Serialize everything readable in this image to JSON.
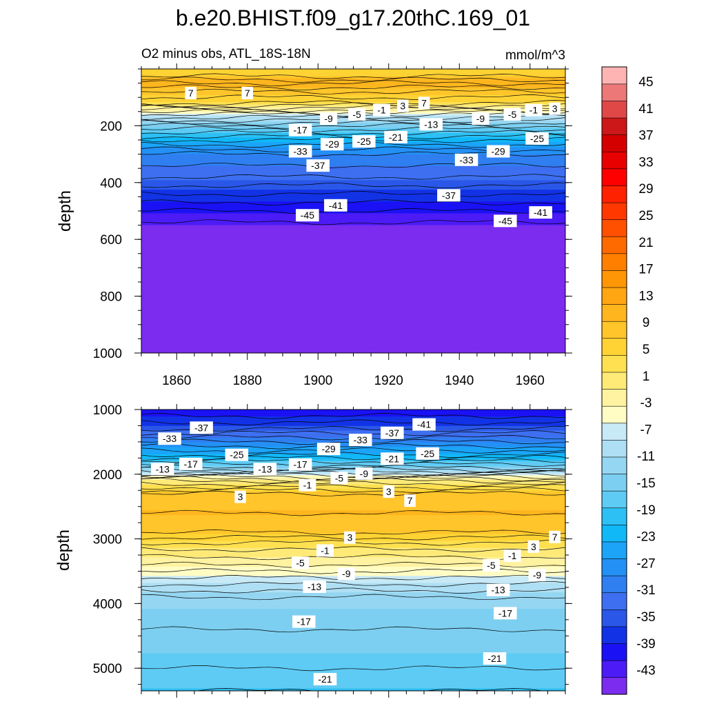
{
  "figure": {
    "title": "b.e20.BHIST.f09_g17.20thC.169_01",
    "subtitle_left": "O2 minus obs, ATL_18S-18N",
    "subtitle_right": "mmol/m^3"
  },
  "colors": {
    "level_colors": [
      "#7b2cee",
      "#4c1bf6",
      "#1a12f4",
      "#1232e6",
      "#2a57e8",
      "#3d6ff0",
      "#2f7ff0",
      "#2390f5",
      "#1ba4f8",
      "#10b8f8",
      "#2cc0f4",
      "#5ecbf4",
      "#7ccff0",
      "#95d6f2",
      "#aedff4",
      "#c8e9f6",
      "#fffcc4",
      "#fff2a0",
      "#ffea78",
      "#ffe050",
      "#ffd334",
      "#ffc52a",
      "#ffb61e",
      "#ffa612",
      "#ff9606",
      "#ff7f00",
      "#ff6a00",
      "#ff5000",
      "#ff3800",
      "#ff2200",
      "#ff0000",
      "#e80000",
      "#d40000",
      "#cc1818",
      "#e04848",
      "#ec7878",
      "#ffb4b4"
    ]
  },
  "chart_data": [
    {
      "type": "heatmap",
      "panel": "upper",
      "xlabel": "",
      "ylabel": "depth",
      "xlim": [
        1850,
        1970
      ],
      "ylim": [
        1000,
        0
      ],
      "x_ticks": [
        1860,
        1880,
        1900,
        1920,
        1940,
        1960
      ],
      "x_tick_labels": [
        "1860",
        "1880",
        "1900",
        "1920",
        "1940",
        "1960"
      ],
      "y_ticks": [
        200,
        400,
        600,
        800,
        1000
      ],
      "y_tick_labels": [
        "200",
        "400",
        "600",
        "800",
        "1000"
      ],
      "contour_levels": [
        -45,
        -43,
        -41,
        -39,
        -37,
        -35,
        -33,
        -31,
        -29,
        -27,
        -25,
        -23,
        -21,
        -19,
        -17,
        -15,
        -13,
        -11,
        -9,
        -7,
        -5,
        -3,
        -1,
        1,
        3,
        5,
        7,
        9
      ],
      "depth_profile": {
        "depth": [
          20,
          50,
          80,
          120,
          160,
          200,
          250,
          300,
          380,
          440,
          500,
          540,
          560,
          1000
        ],
        "value": [
          4,
          9,
          5,
          1,
          -9,
          -17,
          -25,
          -31,
          -35,
          -39,
          -43,
          -45,
          -47,
          -47
        ]
      },
      "contour_labels": [
        {
          "text": "7",
          "x": 1864,
          "y": 85
        },
        {
          "text": "7",
          "x": 1880,
          "y": 85
        },
        {
          "text": "-9",
          "x": 1903,
          "y": 175
        },
        {
          "text": "-5",
          "x": 1911,
          "y": 160
        },
        {
          "text": "-1",
          "x": 1918,
          "y": 145
        },
        {
          "text": "3",
          "x": 1924,
          "y": 130
        },
        {
          "text": "7",
          "x": 1930,
          "y": 120
        },
        {
          "text": "-17",
          "x": 1895,
          "y": 215
        },
        {
          "text": "-13",
          "x": 1932,
          "y": 195
        },
        {
          "text": "-21",
          "x": 1922,
          "y": 240
        },
        {
          "text": "-25",
          "x": 1913,
          "y": 255
        },
        {
          "text": "-29",
          "x": 1904,
          "y": 265
        },
        {
          "text": "-33",
          "x": 1895,
          "y": 290
        },
        {
          "text": "-9",
          "x": 1946,
          "y": 175
        },
        {
          "text": "-5",
          "x": 1955,
          "y": 160
        },
        {
          "text": "-1",
          "x": 1961,
          "y": 145
        },
        {
          "text": "3",
          "x": 1967,
          "y": 140
        },
        {
          "text": "-25",
          "x": 1962,
          "y": 245
        },
        {
          "text": "-29",
          "x": 1951,
          "y": 290
        },
        {
          "text": "-33",
          "x": 1942,
          "y": 320
        },
        {
          "text": "-37",
          "x": 1900,
          "y": 340
        },
        {
          "text": "-37",
          "x": 1937,
          "y": 445
        },
        {
          "text": "-41",
          "x": 1905,
          "y": 480
        },
        {
          "text": "-45",
          "x": 1897,
          "y": 515
        },
        {
          "text": "-41",
          "x": 1963,
          "y": 505
        },
        {
          "text": "-45",
          "x": 1953,
          "y": 535
        }
      ]
    },
    {
      "type": "heatmap",
      "panel": "lower",
      "xlabel": "",
      "ylabel": "depth",
      "xlim": [
        1850,
        1970
      ],
      "ylim": [
        5350,
        1000
      ],
      "x_ticks": [
        1860,
        1880,
        1900,
        1920,
        1940,
        1960
      ],
      "x_tick_labels": [],
      "y_ticks": [
        1000,
        2000,
        3000,
        4000,
        5000
      ],
      "y_tick_labels": [
        "1000",
        "2000",
        "3000",
        "4000",
        "5000"
      ],
      "contour_levels": [
        -45,
        -43,
        -41,
        -39,
        -37,
        -35,
        -33,
        -31,
        -29,
        -27,
        -25,
        -23,
        -21,
        -19,
        -17,
        -15,
        -13,
        -11,
        -9,
        -7,
        -5,
        -3,
        -1,
        1,
        3,
        5,
        7,
        9
      ],
      "depth_profile": {
        "depth": [
          1000,
          1300,
          1500,
          1700,
          1900,
          2100,
          2300,
          2600,
          2900,
          3100,
          3400,
          3700,
          3900,
          4400,
          5000,
          5350
        ],
        "value": [
          -43,
          -37,
          -31,
          -25,
          -17,
          -3,
          5,
          7,
          5,
          0,
          -5,
          -11,
          -15,
          -17,
          -19,
          -21
        ]
      },
      "contour_labels": [
        {
          "text": "-37",
          "x": 1867,
          "y": 1280
        },
        {
          "text": "-33",
          "x": 1858,
          "y": 1450
        },
        {
          "text": "-41",
          "x": 1930,
          "y": 1230
        },
        {
          "text": "-37",
          "x": 1921,
          "y": 1360
        },
        {
          "text": "-33",
          "x": 1912,
          "y": 1470
        },
        {
          "text": "-29",
          "x": 1903,
          "y": 1610
        },
        {
          "text": "-25",
          "x": 1877,
          "y": 1700
        },
        {
          "text": "-21",
          "x": 1921,
          "y": 1760
        },
        {
          "text": "-25",
          "x": 1931,
          "y": 1680
        },
        {
          "text": "-17",
          "x": 1864,
          "y": 1840
        },
        {
          "text": "-13",
          "x": 1856,
          "y": 1920
        },
        {
          "text": "-17",
          "x": 1895,
          "y": 1850
        },
        {
          "text": "-13",
          "x": 1885,
          "y": 1920
        },
        {
          "text": "-9",
          "x": 1913,
          "y": 1990
        },
        {
          "text": "-5",
          "x": 1906,
          "y": 2060
        },
        {
          "text": "-1",
          "x": 1897,
          "y": 2170
        },
        {
          "text": "3",
          "x": 1878,
          "y": 2350
        },
        {
          "text": "3",
          "x": 1920,
          "y": 2270
        },
        {
          "text": "7",
          "x": 1926,
          "y": 2410
        },
        {
          "text": "3",
          "x": 1909,
          "y": 2980
        },
        {
          "text": "-1",
          "x": 1902,
          "y": 3180
        },
        {
          "text": "-5",
          "x": 1895,
          "y": 3370
        },
        {
          "text": "-9",
          "x": 1908,
          "y": 3540
        },
        {
          "text": "-13",
          "x": 1899,
          "y": 3740
        },
        {
          "text": "7",
          "x": 1967,
          "y": 2970
        },
        {
          "text": "3",
          "x": 1961,
          "y": 3120
        },
        {
          "text": "-1",
          "x": 1955,
          "y": 3260
        },
        {
          "text": "-5",
          "x": 1949,
          "y": 3410
        },
        {
          "text": "-9",
          "x": 1962,
          "y": 3560
        },
        {
          "text": "-13",
          "x": 1951,
          "y": 3790
        },
        {
          "text": "-17",
          "x": 1896,
          "y": 4280
        },
        {
          "text": "-17",
          "x": 1953,
          "y": 4150
        },
        {
          "text": "-21",
          "x": 1950,
          "y": 4850
        },
        {
          "text": "-21",
          "x": 1902,
          "y": 5170
        }
      ]
    },
    {
      "type": "colorbar",
      "tick_labels": [
        "45",
        "41",
        "37",
        "33",
        "29",
        "25",
        "21",
        "17",
        "13",
        "9",
        "5",
        "1",
        "-3",
        "-7",
        "-11",
        "-15",
        "-19",
        "-23",
        "-27",
        "-31",
        "-35",
        "-39",
        "-43"
      ]
    }
  ]
}
